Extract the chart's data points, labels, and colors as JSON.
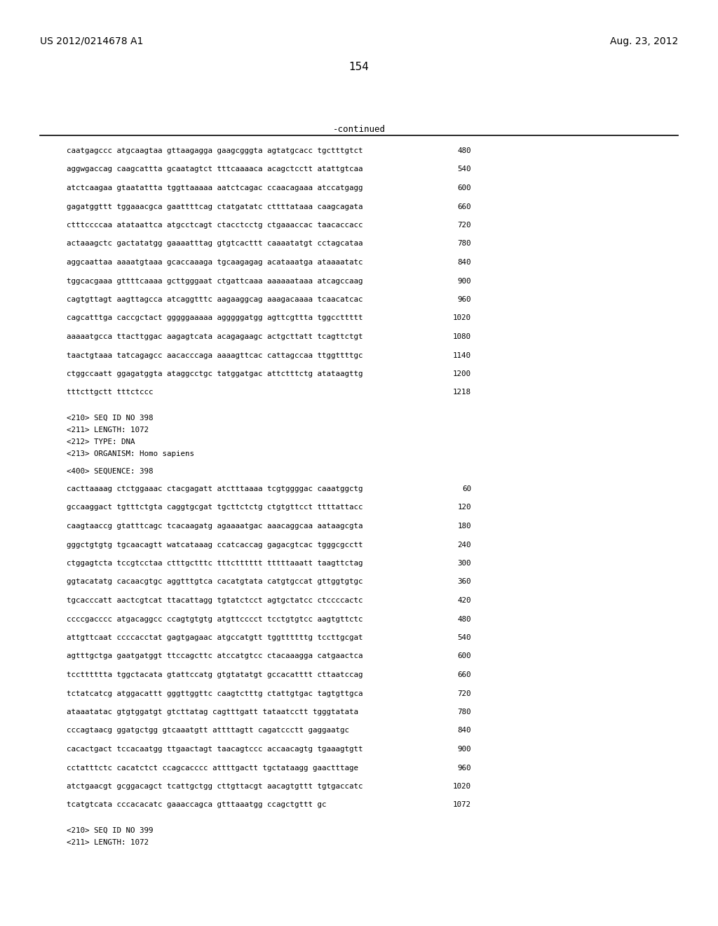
{
  "header_left": "US 2012/0214678 A1",
  "header_right": "Aug. 23, 2012",
  "page_number": "154",
  "continued_label": "-continued",
  "background_color": "#ffffff",
  "seq_block1": [
    [
      "caatgagccc atgcaagtaa gttaagagga gaagcgggta agtatgcacc tgctttgtct",
      "480"
    ],
    [
      "aggwgaccag caagcattta gcaatagtct tttcaaaaca acagctcctt atattgtcaa",
      "540"
    ],
    [
      "atctcaagaa gtaatattta tggttaaaaa aatctcagac ccaacagaaa atccatgagg",
      "600"
    ],
    [
      "gagatggttt tggaaacgca gaattttcag ctatgatatc cttttataaа caagcagata",
      "660"
    ],
    [
      "ctttccccaa atataattca atgcctcagt ctacctcctg ctgaaaccac taacaccacc",
      "720"
    ],
    [
      "actaaagctc gactatatgg gaaaatttag gtgtcacttt caaaatatgt cctagcataa",
      "780"
    ],
    [
      "aggcaattaa aaaatgtaaa gcaccaaaga tgcaagagag acataaatga ataaaatatc",
      "840"
    ],
    [
      "tggcacgaaa gttttcaaaa gcttgggaat ctgattcaaa aaaaaataaa atcagccaag",
      "900"
    ],
    [
      "cagtgttagt aagttagcca atcaggtttc aagaaggcag aaagacaaaa tcaacatcac",
      "960"
    ],
    [
      "cagcatttga caccgctact gggggaaaaa agggggatgg agttcgttta tggccttttt",
      "1020"
    ],
    [
      "aaaaatgcca ttacttggac aagagtcata acagagaagc actgcttatt tcagttctgt",
      "1080"
    ],
    [
      "taactgtaaa tatcagagcc aacacccaga aaaagttcac cattagccaa ttggttttgc",
      "1140"
    ],
    [
      "ctggccaatt ggagatggta ataggcctgc tatggatgac attctttctg atataagttg",
      "1200"
    ],
    [
      "tttcttgctt tttctccc",
      "1218"
    ]
  ],
  "seq_header1": [
    "<210> SEQ ID NO 398",
    "<211> LENGTH: 1072",
    "<212> TYPE: DNA",
    "<213> ORGANISM: Homo sapiens"
  ],
  "seq_label1": "<400> SEQUENCE: 398",
  "seq_block2": [
    [
      "cacttaaaag ctctggaaac ctacgagatt atctttaaaa tcgtggggac caaatggctg",
      "60"
    ],
    [
      "gccaaggact tgtttctgta caggtgcgat tgcttctctg ctgtgttcct ttttattacc",
      "120"
    ],
    [
      "caagtaaccg gtatttcagc tcacaagatg agaaaatgac aaacaggcaa aataagcgta",
      "180"
    ],
    [
      "gggctgtgtg tgcaacagtt watcataaag ccatcaccag gagacgtcac tgggcgcctt",
      "240"
    ],
    [
      "ctggagtcta tccgtcctaa ctttgctttc tttctttttt tttttaaatt taagttctag",
      "300"
    ],
    [
      "ggtacatatg cacaacgtgc aggtttgtca cacatgtata catgtgccat gttggtgtgc",
      "360"
    ],
    [
      "tgcacccatt aactcgtcat ttacattagg tgtatctcct agtgctatcc ctccccactc",
      "420"
    ],
    [
      "ccccgacccc atgacaggcc ccagtgtgtg atgttcccct tcctgtgtcc aagtgttctc",
      "480"
    ],
    [
      "attgttcaat ccccacctat gagtgagaac atgccatgtt tggttttttg tccttgcgat",
      "540"
    ],
    [
      "agtttgctga gaatgatggt ttccagcttc atccatgtcc ctacaaagga catgaactca",
      "600"
    ],
    [
      "tcctttttta tggctacata gtattccatg gtgtatatgt gccacatttt cttaatccag",
      "660"
    ],
    [
      "tctatcatcg atggacattt gggttggttc caagtctttg ctattgtgac tagtgttgca",
      "720"
    ],
    [
      "ataaatatac gtgtggatgt gtcttatag cagtttgatt tataatcctt tgggtatata",
      "780"
    ],
    [
      "cccagtaacg ggatgctgg gtcaaatgtt attttagtt cagatccctt gaggaatgc",
      "840"
    ],
    [
      "cacactgact tccacaatgg ttgaactagt taacagtccc accaacagtg tgaaagtgtt",
      "900"
    ],
    [
      "cctatttctc cacatctct ccagcacccc attttgactt tgctataagg gaactttage",
      "960"
    ],
    [
      "atctgaacgt gcggacagct tcattgctgg cttgttacgt aacagtgttt tgtgaccatc",
      "1020"
    ],
    [
      "tcatgtcata cccacacatc gaaaccagca gtttaaatgg ccagctgttt gc",
      "1072"
    ]
  ],
  "seq_header2": [
    "<210> SEQ ID NO 399",
    "<211> LENGTH: 1072"
  ]
}
